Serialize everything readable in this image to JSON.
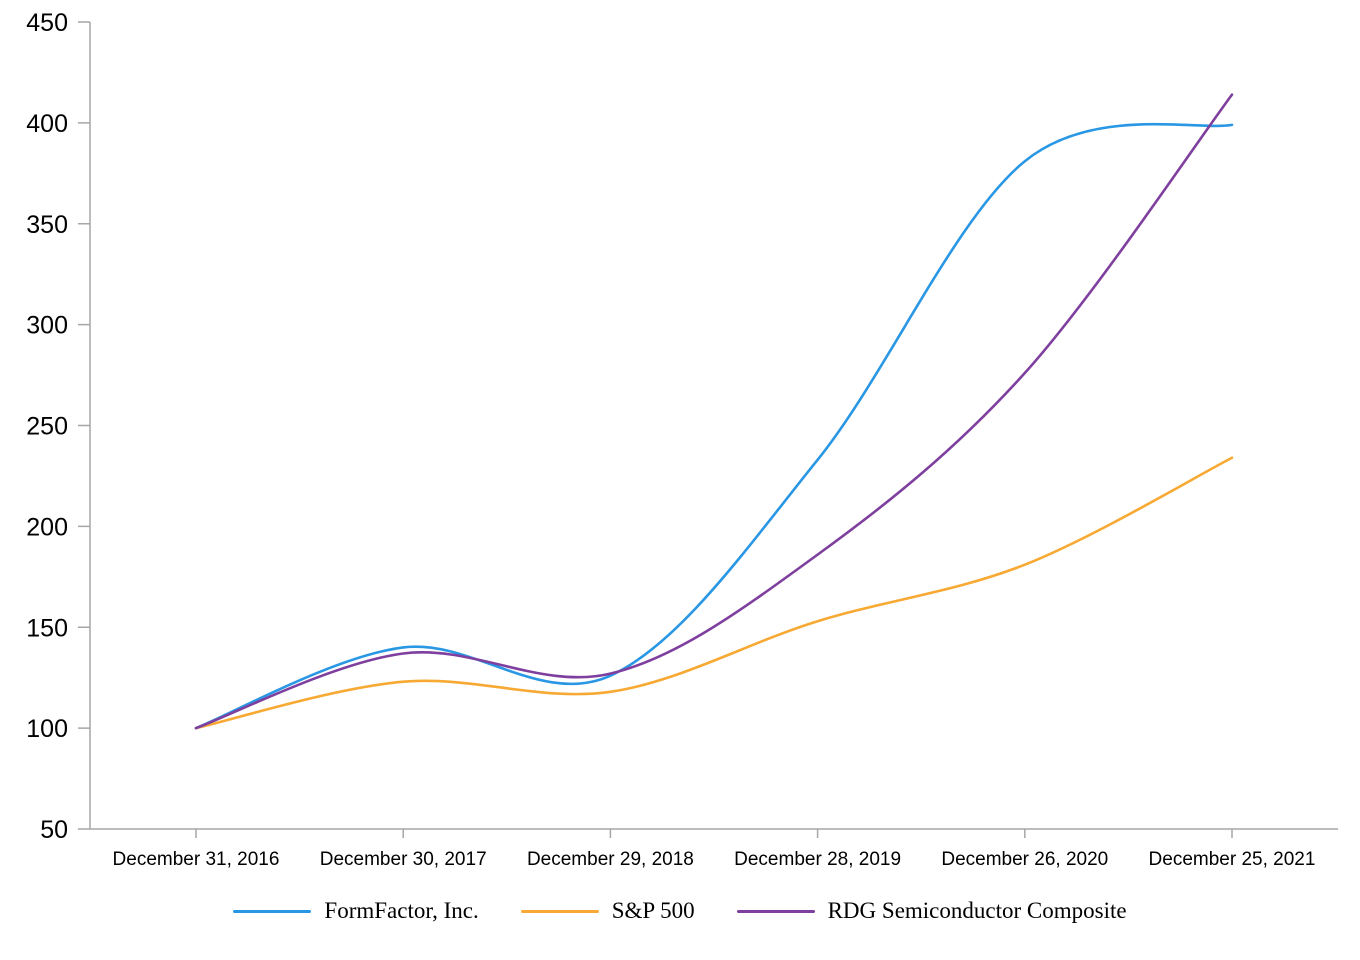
{
  "chart_data": {
    "type": "line",
    "title": "",
    "xlabel": "",
    "ylabel": "",
    "categories": [
      "December 31, 2016",
      "December 30, 2017",
      "December 29, 2018",
      "December 28, 2019",
      "December 26, 2020",
      "December 25, 2021"
    ],
    "series": [
      {
        "name": "FormFactor, Inc.",
        "color": "#2997E4",
        "values": [
          100,
          140,
          126,
          233,
          381,
          399
        ]
      },
      {
        "name": "S&P 500",
        "color": "#F7A933",
        "values": [
          100,
          123,
          118,
          153,
          181,
          234
        ]
      },
      {
        "name": "RDG Semiconductor Composite",
        "color": "#7E3F9E",
        "values": [
          100,
          137,
          127,
          186,
          276,
          414
        ]
      }
    ],
    "ylim": [
      50,
      450
    ],
    "yticks": [
      450,
      400,
      350,
      300,
      250,
      200,
      150,
      100,
      50
    ],
    "grid": false,
    "smooth_lines": true,
    "legend_position": "bottom",
    "axis_color": "#A6A6A6",
    "text_color": "#000000",
    "background_color": "#FFFFFF"
  }
}
